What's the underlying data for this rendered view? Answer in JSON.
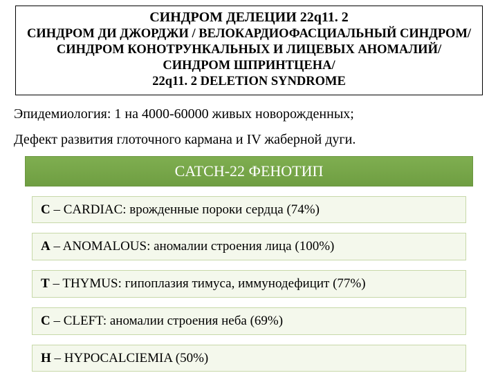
{
  "title": {
    "line1": "СИНДРОМ ДЕЛЕЦИИ 22q11. 2",
    "line2": "СИНДРОМ ДИ ДЖОРДЖИ / ВЕЛОКАРДИОФАСЦИАЛЬНЫЙ СИНДРОМ/  СИНДРОМ КОНОТРУНКАЛЬНЫХ И ЛИЦЕВЫХ АНОМАЛИЙ/ СИНДРОМ ШПРИНТЦЕНА/",
    "line3": "22q11. 2 DELETION SYNDROME"
  },
  "epidemiology": "Эпидемиология:  1 на 4000-60000 живых новорожденных;",
  "defect": "Дефект развития глоточного кармана и  IV жаберной дуги.",
  "phenotype_header": "CATCH-22 ФЕНОТИП",
  "items": [
    {
      "lead": "C",
      "rest": " – CARDIAC:  врожденные пороки сердца  (74%)"
    },
    {
      "lead": "A",
      "rest": " – ANOMALOUS: аномалии строения  лица  (100%)"
    },
    {
      "lead": "T",
      "rest": " – THYMUS: гипоплазия тимуса, иммунодефицит (77%)"
    },
    {
      "lead": "C",
      "rest": " – CLEFT: аномалии строения неба (69%)"
    },
    {
      "lead": "H",
      "rest": " – HYPOCALCIEMIA (50%)"
    }
  ],
  "colors": {
    "header_bg": "#76a646",
    "header_text": "#ffffff",
    "item_bg": "#f4f8ec",
    "item_border": "#c7d8a8",
    "page_bg": "#ffffff",
    "text": "#000000"
  },
  "typography": {
    "title_main_pt": 20,
    "title_sub_pt": 18.5,
    "body_pt": 20,
    "header_pt": 22,
    "item_pt": 19,
    "font_family": "Times New Roman"
  }
}
